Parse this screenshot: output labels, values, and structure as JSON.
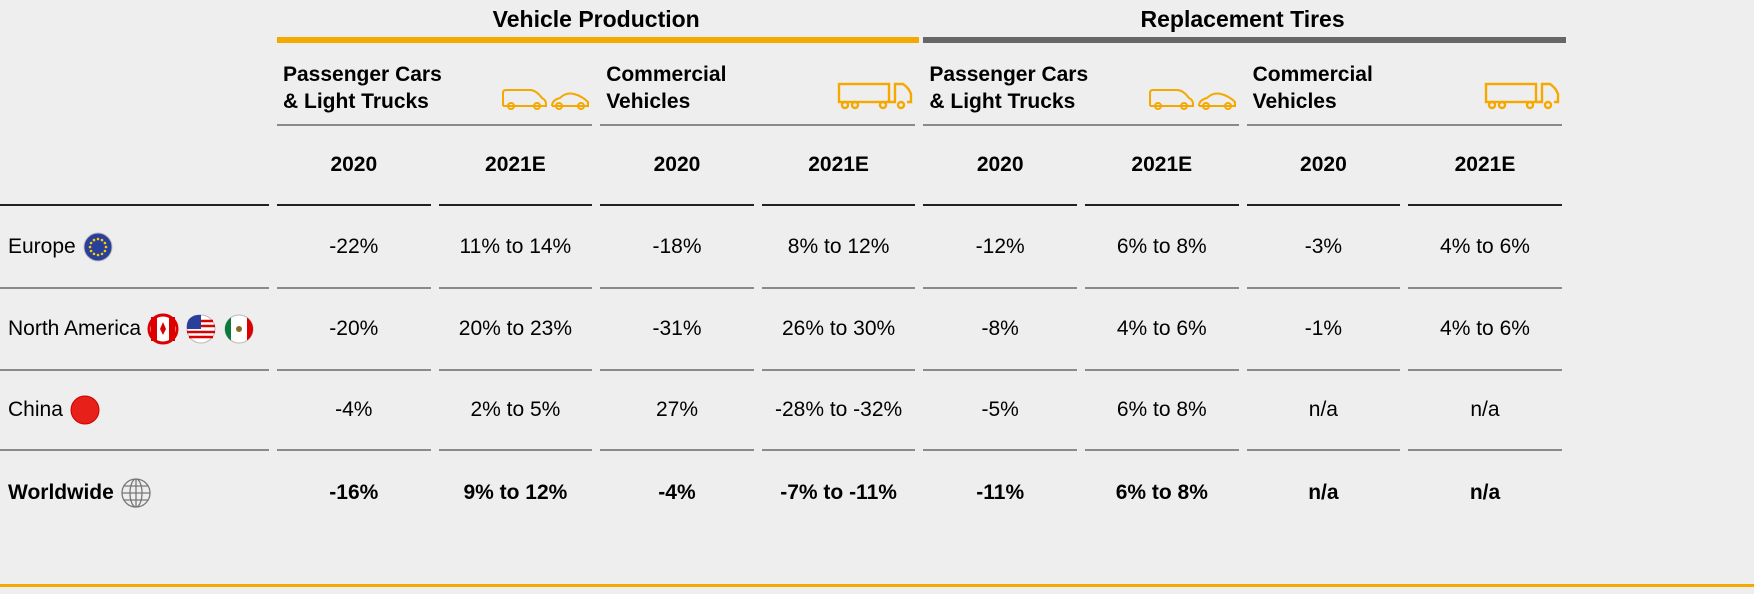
{
  "groups": [
    {
      "title": "Vehicle Production",
      "subgroups": [
        {
          "lines": [
            "Passenger Cars",
            "& Light Trucks"
          ]
        },
        {
          "lines": [
            "Commercial",
            "Vehicles"
          ]
        }
      ]
    },
    {
      "title": "Replacement Tires",
      "subgroups": [
        {
          "lines": [
            "Passenger Cars",
            "& Light Trucks"
          ]
        },
        {
          "lines": [
            "Commercial",
            "Vehicles"
          ]
        }
      ]
    }
  ],
  "years": [
    "2020",
    "2021E",
    "2020",
    "2021E",
    "2020",
    "2021E",
    "2020",
    "2021E"
  ],
  "rows": [
    {
      "label": "Europe",
      "values": [
        "-22%",
        "11% to 14%",
        "-18%",
        "8% to 12%",
        "-12%",
        "6% to 8%",
        "-3%",
        "4% to 6%"
      ]
    },
    {
      "label": "North America",
      "values": [
        "-20%",
        "20% to 23%",
        "-31%",
        "26% to 30%",
        "-8%",
        "4% to 6%",
        "-1%",
        "4% to 6%"
      ]
    },
    {
      "label": "China",
      "values": [
        "-4%",
        "2% to 5%",
        "27%",
        "-28% to -32%",
        "-5%",
        "6% to 8%",
        "n/a",
        "n/a"
      ]
    },
    {
      "label": "Worldwide",
      "values": [
        "-16%",
        "9% to 12%",
        "-4%",
        "-7% to -11%",
        "-11%",
        "6% to 8%",
        "n/a",
        "n/a"
      ]
    }
  ]
}
